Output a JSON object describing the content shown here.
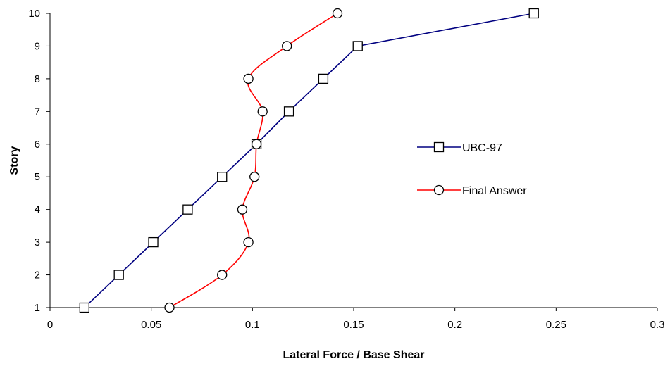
{
  "chart_data": {
    "type": "line",
    "title": "",
    "xlabel": "Lateral Force / Base Shear",
    "ylabel": "Story",
    "xlim": [
      0,
      0.3
    ],
    "ylim": [
      1,
      10
    ],
    "xticks": [
      "0",
      "0.05",
      "0.1",
      "0.15",
      "0.2",
      "0.25",
      "0.3"
    ],
    "yticks": [
      "1",
      "2",
      "3",
      "4",
      "5",
      "6",
      "7",
      "8",
      "9",
      "10"
    ],
    "grid": false,
    "legend_position": "right",
    "series": [
      {
        "name": "UBC-97",
        "color": "#000080",
        "marker": "square",
        "smooth": false,
        "x": [
          0.017,
          0.034,
          0.051,
          0.068,
          0.085,
          0.102,
          0.118,
          0.135,
          0.152,
          0.239
        ],
        "y": [
          1,
          2,
          3,
          4,
          5,
          6,
          7,
          8,
          9,
          10
        ]
      },
      {
        "name": "Final Answer",
        "color": "#ff0000",
        "marker": "circle",
        "smooth": true,
        "x": [
          0.059,
          0.085,
          0.098,
          0.095,
          0.101,
          0.102,
          0.105,
          0.098,
          0.117,
          0.142
        ],
        "y": [
          1,
          2,
          3,
          4,
          5,
          6,
          7,
          8,
          9,
          10
        ]
      }
    ]
  }
}
